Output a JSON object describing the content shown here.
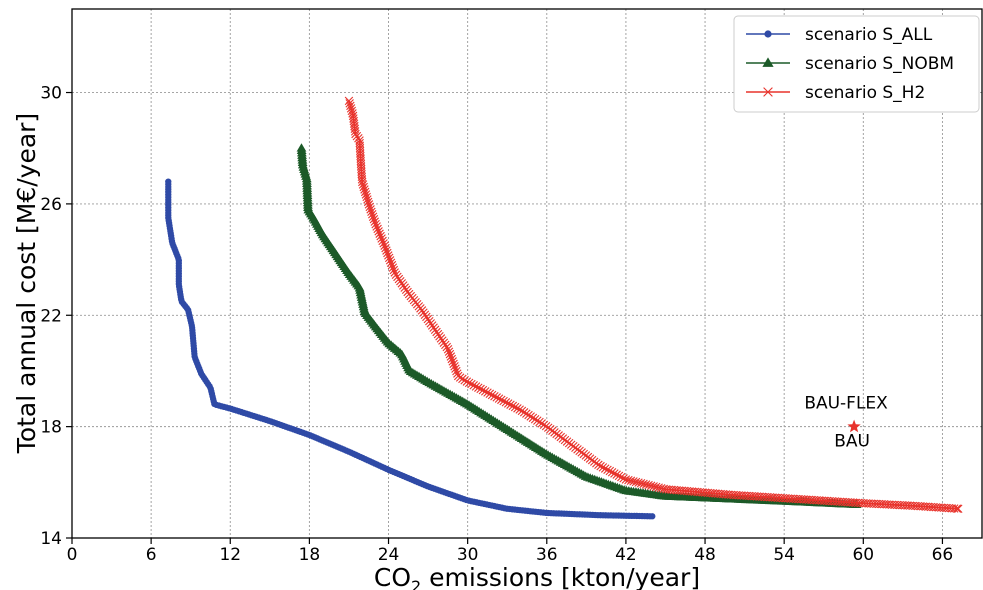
{
  "chart_data": {
    "type": "scatter",
    "xlabel_main": "CO",
    "xlabel_sub": "2",
    "xlabel_rest": " emissions [kton/year]",
    "ylabel": "Total annual cost [M€/year]",
    "xlim": [
      0,
      69
    ],
    "ylim": [
      14,
      33
    ],
    "xticks": [
      0,
      6,
      12,
      18,
      24,
      30,
      36,
      42,
      48,
      54,
      60,
      66
    ],
    "yticks": [
      14,
      18,
      22,
      26,
      30
    ],
    "grid": true,
    "legend_position": "top-right",
    "series": [
      {
        "name": "scenario S_ALL",
        "color": "#2f4aa6",
        "marker": "dot",
        "anchors": [
          [
            7.3,
            26.8
          ],
          [
            7.3,
            25.5
          ],
          [
            7.6,
            24.6
          ],
          [
            8.1,
            24.0
          ],
          [
            8.1,
            23.1
          ],
          [
            8.3,
            22.5
          ],
          [
            8.8,
            22.2
          ],
          [
            9.1,
            21.6
          ],
          [
            9.3,
            20.5
          ],
          [
            9.8,
            19.9
          ],
          [
            10.5,
            19.4
          ],
          [
            10.8,
            18.8
          ],
          [
            12,
            18.65
          ],
          [
            15,
            18.2
          ],
          [
            18,
            17.7
          ],
          [
            21,
            17.1
          ],
          [
            24,
            16.45
          ],
          [
            27,
            15.85
          ],
          [
            30,
            15.35
          ],
          [
            33,
            15.05
          ],
          [
            36,
            14.9
          ],
          [
            40,
            14.82
          ],
          [
            44,
            14.78
          ]
        ]
      },
      {
        "name": "scenario S_NOBM",
        "color": "#1c5a28",
        "marker": "triangle",
        "anchors": [
          [
            17.4,
            28.0
          ],
          [
            17.5,
            27.4
          ],
          [
            17.8,
            26.9
          ],
          [
            17.9,
            25.8
          ],
          [
            18.3,
            25.5
          ],
          [
            19,
            24.9
          ],
          [
            20,
            24.2
          ],
          [
            21,
            23.5
          ],
          [
            21.8,
            23.0
          ],
          [
            22.2,
            22.1
          ],
          [
            23,
            21.6
          ],
          [
            24,
            21.0
          ],
          [
            25,
            20.6
          ],
          [
            25.6,
            20.0
          ],
          [
            27,
            19.6
          ],
          [
            30,
            18.8
          ],
          [
            33,
            17.9
          ],
          [
            36,
            17.0
          ],
          [
            39,
            16.2
          ],
          [
            42,
            15.7
          ],
          [
            45,
            15.5
          ],
          [
            50,
            15.4
          ],
          [
            55,
            15.3
          ],
          [
            59.5,
            15.2
          ]
        ]
      },
      {
        "name": "scenario S_H2",
        "color": "#e8332c",
        "marker": "cross",
        "anchors": [
          [
            21,
            29.7
          ],
          [
            21.3,
            29.2
          ],
          [
            21.5,
            28.5
          ],
          [
            21.8,
            28.3
          ],
          [
            21.9,
            27.5
          ],
          [
            22,
            26.8
          ],
          [
            22.5,
            26.0
          ],
          [
            23,
            25.3
          ],
          [
            23.7,
            24.5
          ],
          [
            24.5,
            23.5
          ],
          [
            25.5,
            22.8
          ],
          [
            26.5,
            22.2
          ],
          [
            27.5,
            21.5
          ],
          [
            28.5,
            20.8
          ],
          [
            29.3,
            19.8
          ],
          [
            30,
            19.6
          ],
          [
            32,
            19.1
          ],
          [
            34,
            18.6
          ],
          [
            36,
            18.0
          ],
          [
            38,
            17.3
          ],
          [
            40,
            16.6
          ],
          [
            42,
            16.1
          ],
          [
            45,
            15.75
          ],
          [
            50,
            15.55
          ],
          [
            55,
            15.4
          ],
          [
            60,
            15.25
          ],
          [
            64,
            15.15
          ],
          [
            67.2,
            15.05
          ]
        ]
      }
    ],
    "annotations": [
      {
        "label": "BAU-FLEX",
        "x": 59.3,
        "y": 18.0
      },
      {
        "label": "BAU",
        "x": 59.3,
        "y": 18.0
      }
    ]
  }
}
